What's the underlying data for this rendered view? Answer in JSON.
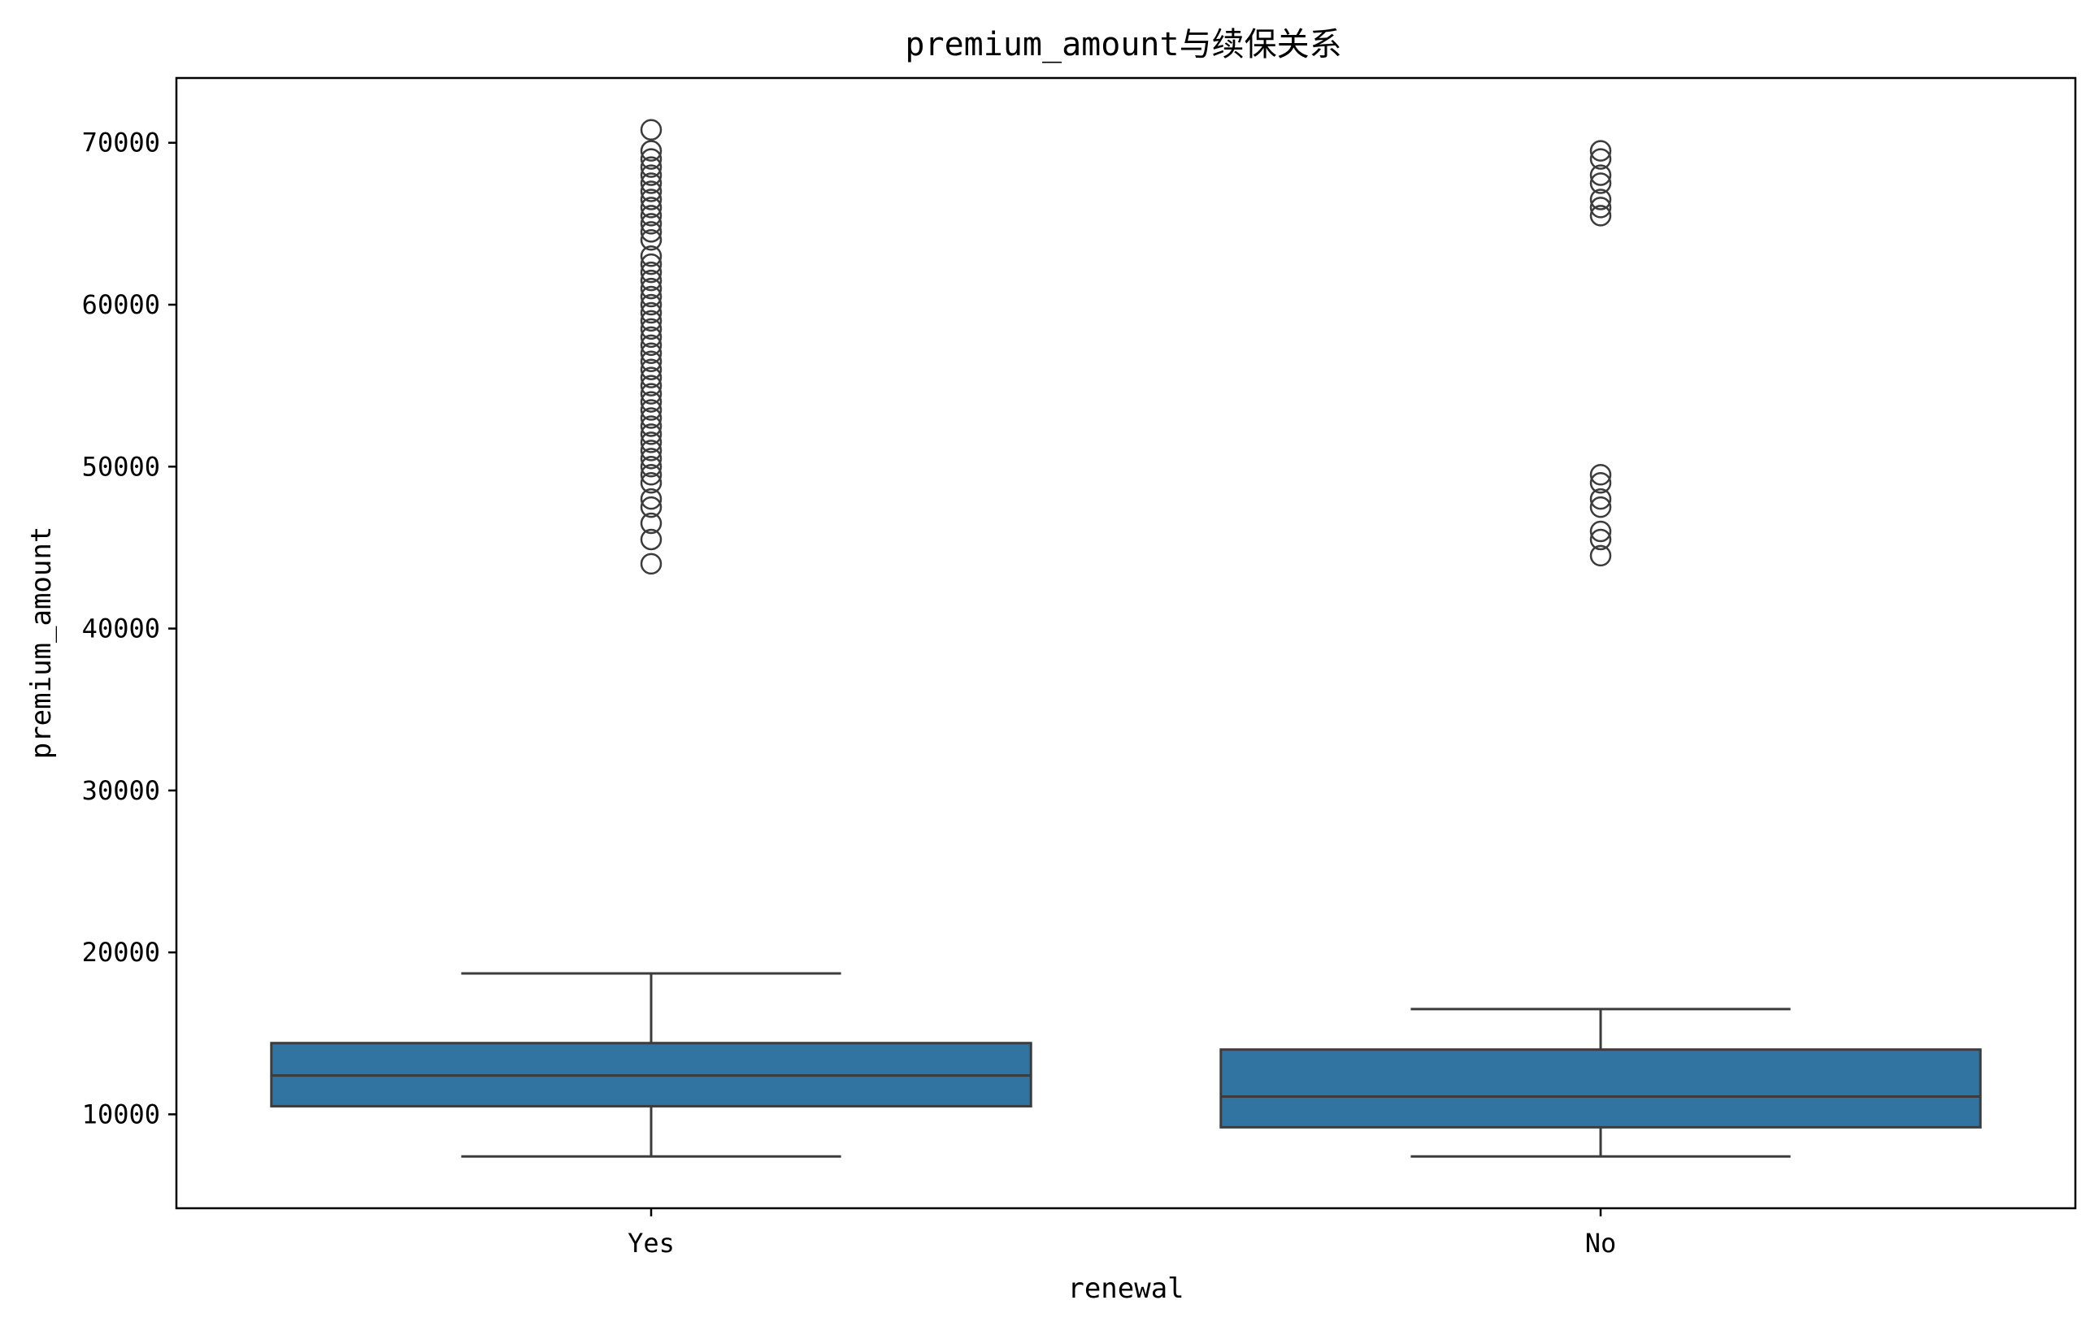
{
  "chart_data": {
    "type": "box",
    "title": "premium_amount与续保关系",
    "xlabel": "renewal",
    "ylabel": "premium_amount",
    "ylim": [
      4200,
      74000
    ],
    "yticks": [
      10000,
      20000,
      30000,
      40000,
      50000,
      60000,
      70000
    ],
    "categories": [
      "Yes",
      "No"
    ],
    "box_color": "#3274a1",
    "line_color": "#3c3c3c",
    "grid": false,
    "legend": "none",
    "boxes": [
      {
        "category": "Yes",
        "whisker_low": 7400,
        "q1": 10500,
        "median": 12400,
        "q3": 14400,
        "whisker_high": 18700,
        "outliers": [
          44000,
          45500,
          46500,
          47500,
          48000,
          49000,
          49500,
          50000,
          50500,
          51000,
          51500,
          52000,
          52500,
          53000,
          53500,
          54000,
          54500,
          55000,
          55500,
          56000,
          56500,
          57000,
          57500,
          58000,
          58500,
          59000,
          59500,
          60000,
          60500,
          61000,
          61500,
          62000,
          62500,
          63000,
          64000,
          64500,
          65000,
          65500,
          66000,
          66500,
          67000,
          67500,
          68000,
          68500,
          69000,
          69500,
          70800
        ]
      },
      {
        "category": "No",
        "whisker_low": 7400,
        "q1": 9200,
        "median": 11100,
        "q3": 14000,
        "whisker_high": 16500,
        "outliers": [
          44500,
          45500,
          46000,
          47500,
          48000,
          49000,
          49500,
          65500,
          66000,
          66500,
          67500,
          68000,
          69000,
          69500
        ]
      }
    ]
  }
}
